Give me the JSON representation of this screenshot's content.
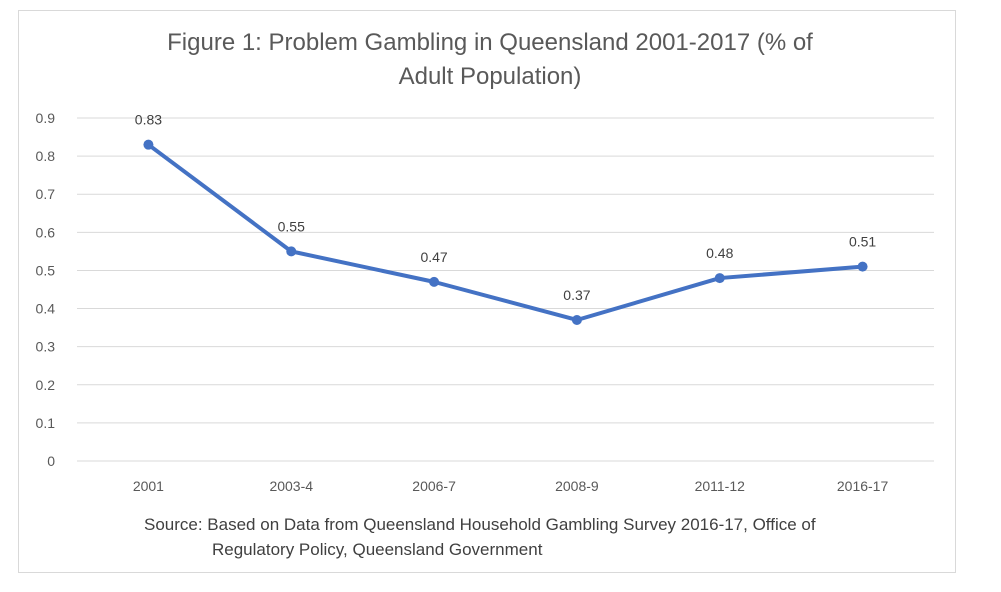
{
  "chart_data": {
    "type": "line",
    "title_lines": [
      "Figure 1: Problem Gambling in Queensland 2001-2017 (% of",
      "Adult Population)"
    ],
    "categories": [
      "2001",
      "2003-4",
      "2006-7",
      "2008-9",
      "2011-12",
      "2016-17"
    ],
    "series": [
      {
        "values": [
          0.83,
          0.55,
          0.47,
          0.37,
          0.48,
          0.51
        ],
        "data_labels": [
          "0.83",
          "0.55",
          "0.47",
          "0.37",
          "0.48",
          "0.51"
        ]
      }
    ],
    "y_ticks": [
      "0",
      "0.1",
      "0.2",
      "0.3",
      "0.4",
      "0.5",
      "0.6",
      "0.7",
      "0.8",
      "0.9"
    ],
    "ylim": [
      0,
      0.9
    ],
    "grid": true,
    "legend": "none",
    "colors": {
      "line": "#4472c4",
      "grid": "#d9d9d9"
    }
  },
  "source_lines": [
    "Source: Based on Data from Queensland Household Gambling Survey   2016-17, Office of",
    "Regulatory Policy, Queensland Government"
  ]
}
